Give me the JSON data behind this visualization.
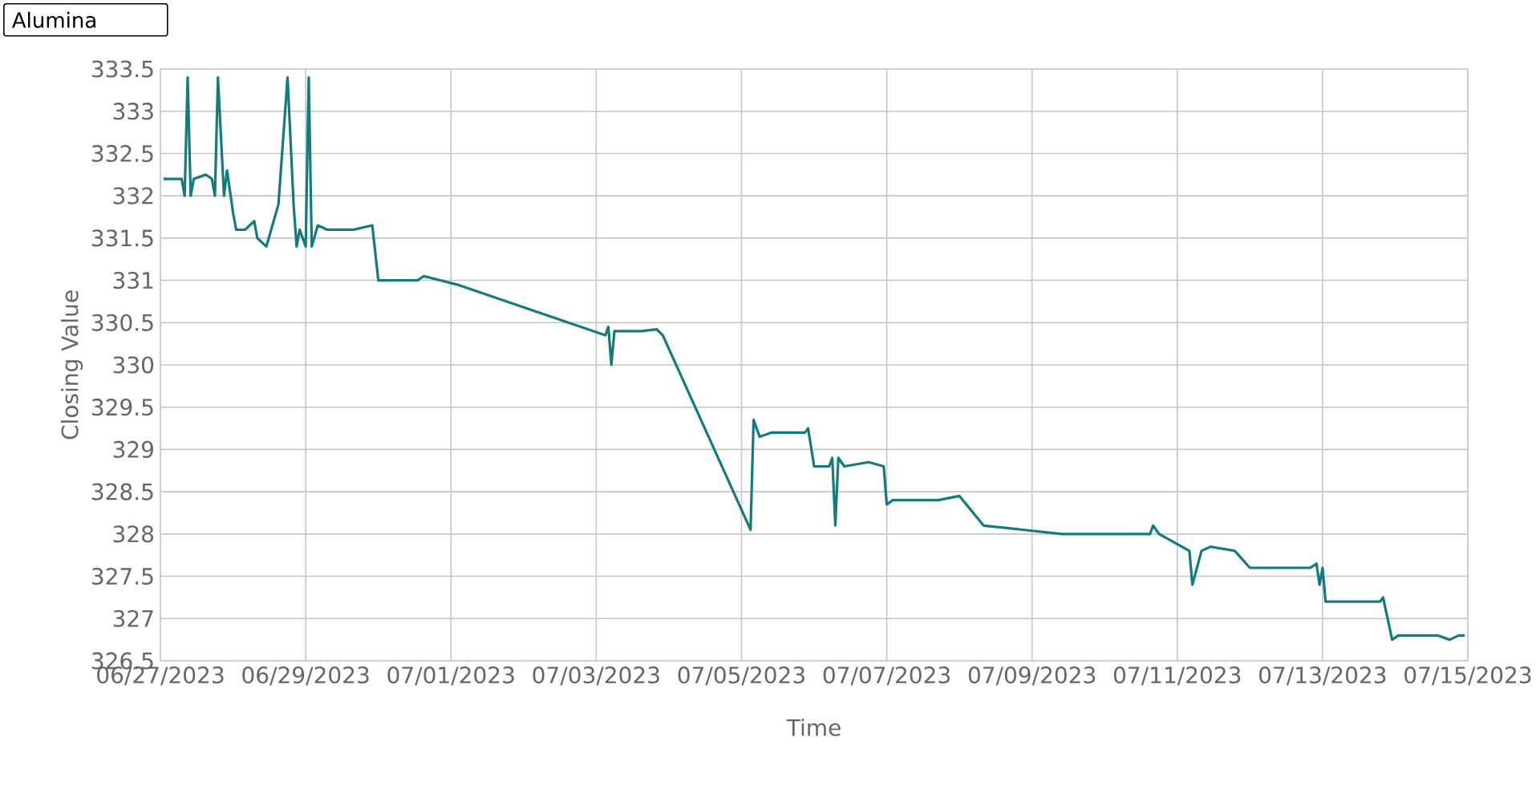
{
  "chart_data": {
    "type": "line",
    "xlabel": "Time",
    "ylabel": "Closing Value",
    "annotations": [
      "Alumina"
    ],
    "x": [
      "2023-06-27T01:00",
      "2023-06-27T07:00",
      "2023-06-27T08:00",
      "2023-06-27T09:00",
      "2023-06-27T10:00",
      "2023-06-27T11:00",
      "2023-06-27T15:00",
      "2023-06-27T17:00",
      "2023-06-27T18:00",
      "2023-06-27T19:00",
      "2023-06-27T21:00",
      "2023-06-27T22:00",
      "2023-06-28T00:00",
      "2023-06-28T01:00",
      "2023-06-28T04:00",
      "2023-06-28T07:00",
      "2023-06-28T08:00",
      "2023-06-28T11:00",
      "2023-06-28T15:00",
      "2023-06-28T18:00",
      "2023-06-28T20:00",
      "2023-06-28T21:00",
      "2023-06-28T22:00",
      "2023-06-29T00:00",
      "2023-06-29T01:00",
      "2023-06-29T02:00",
      "2023-06-29T04:00",
      "2023-06-29T07:00",
      "2023-06-29T16:00",
      "2023-06-29T22:00",
      "2023-06-30T00:00",
      "2023-06-30T02:00",
      "2023-06-30T13:00",
      "2023-06-30T15:00",
      "2023-07-01T02:00",
      "2023-07-03T03:00",
      "2023-07-03T04:00",
      "2023-07-03T05:00",
      "2023-07-03T06:00",
      "2023-07-03T07:00",
      "2023-07-03T08:00",
      "2023-07-03T15:00",
      "2023-07-03T20:00",
      "2023-07-03T22:00",
      "2023-07-05T03:00",
      "2023-07-05T04:00",
      "2023-07-05T06:00",
      "2023-07-05T10:00",
      "2023-07-05T21:00",
      "2023-07-05T22:00",
      "2023-07-06T00:00",
      "2023-07-06T05:00",
      "2023-07-06T06:00",
      "2023-07-06T07:00",
      "2023-07-06T08:00",
      "2023-07-06T10:00",
      "2023-07-06T18:00",
      "2023-07-06T23:00",
      "2023-07-07T00:00",
      "2023-07-07T02:00",
      "2023-07-07T17:00",
      "2023-07-08T00:00",
      "2023-07-08T08:00",
      "2023-07-09T10:00",
      "2023-07-10T15:00",
      "2023-07-10T16:00",
      "2023-07-10T18:00",
      "2023-07-10T23:00",
      "2023-07-11T04:00",
      "2023-07-11T05:00",
      "2023-07-11T08:00",
      "2023-07-11T11:00",
      "2023-07-11T19:00",
      "2023-07-12T00:00",
      "2023-07-12T20:00",
      "2023-07-12T22:00",
      "2023-07-12T23:00",
      "2023-07-13T00:00",
      "2023-07-13T01:00",
      "2023-07-13T03:00",
      "2023-07-13T19:00",
      "2023-07-13T20:00",
      "2023-07-13T23:00",
      "2023-07-14T01:00",
      "2023-07-14T14:00",
      "2023-07-14T18:00",
      "2023-07-14T21:00",
      "2023-07-14T23:00"
    ],
    "values": [
      332.2,
      332.2,
      332.0,
      333.4,
      332.0,
      332.2,
      332.25,
      332.2,
      332.0,
      333.4,
      332.0,
      332.3,
      331.8,
      331.6,
      331.6,
      331.7,
      331.5,
      331.4,
      331.9,
      333.4,
      331.9,
      331.4,
      331.6,
      331.4,
      333.4,
      331.4,
      331.65,
      331.6,
      331.6,
      331.65,
      331.0,
      331.0,
      331.0,
      331.05,
      330.95,
      330.35,
      330.45,
      330.0,
      330.4,
      330.4,
      330.4,
      330.4,
      330.42,
      330.35,
      328.05,
      329.35,
      329.15,
      329.2,
      329.2,
      329.25,
      328.8,
      328.8,
      328.9,
      328.1,
      328.9,
      328.8,
      328.85,
      328.8,
      328.35,
      328.4,
      328.4,
      328.45,
      328.1,
      328.0,
      328.0,
      328.1,
      328.0,
      327.9,
      327.8,
      327.4,
      327.8,
      327.85,
      327.8,
      327.6,
      327.6,
      327.65,
      327.4,
      327.6,
      327.2,
      327.2,
      327.2,
      327.25,
      326.75,
      326.8,
      326.8,
      326.75,
      326.8,
      326.8
    ],
    "color": "#147a7d",
    "grid": true,
    "xlim": [
      "2023-06-27",
      "2023-07-15"
    ],
    "xticks": [
      {
        "value": "2023-06-27",
        "label": "06/27/2023"
      },
      {
        "value": "2023-06-29",
        "label": "06/29/2023"
      },
      {
        "value": "2023-07-01",
        "label": "07/01/2023"
      },
      {
        "value": "2023-07-03",
        "label": "07/03/2023"
      },
      {
        "value": "2023-07-05",
        "label": "07/05/2023"
      },
      {
        "value": "2023-07-07",
        "label": "07/07/2023"
      },
      {
        "value": "2023-07-09",
        "label": "07/09/2023"
      },
      {
        "value": "2023-07-11",
        "label": "07/11/2023"
      },
      {
        "value": "2023-07-13",
        "label": "07/13/2023"
      },
      {
        "value": "2023-07-15",
        "label": "07/15/2023"
      }
    ],
    "ylim": [
      326.5,
      333.5
    ],
    "yticks": [
      326.5,
      327,
      327.5,
      328,
      328.5,
      329,
      329.5,
      330,
      330.5,
      331,
      331.5,
      332,
      332.5,
      333,
      333.5
    ]
  }
}
